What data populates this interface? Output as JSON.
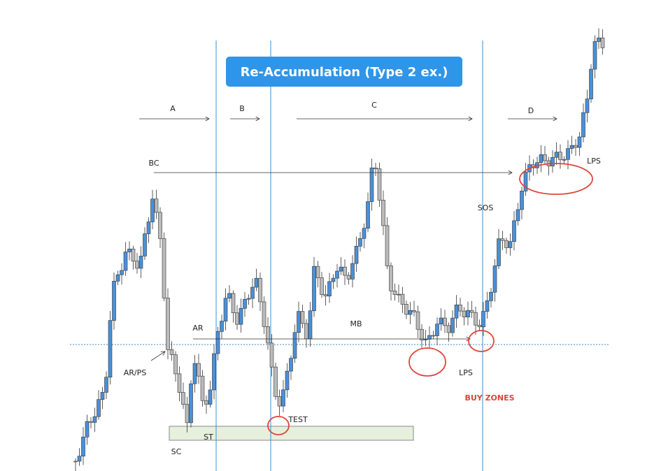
{
  "title": "Re-Accumulation (Type 2 ex.)",
  "phases": [
    "A",
    "B",
    "C",
    "D"
  ],
  "labels": {
    "bc": "BC",
    "ar_ps": "AR/PS",
    "ar": "AR",
    "sc": "SC",
    "st": "ST",
    "test": "TEST",
    "mb": "MB",
    "lps_low": "LPS",
    "sos": "SOS",
    "buy_zones": "BUY ZONES",
    "lps_high": "LPS"
  }
}
